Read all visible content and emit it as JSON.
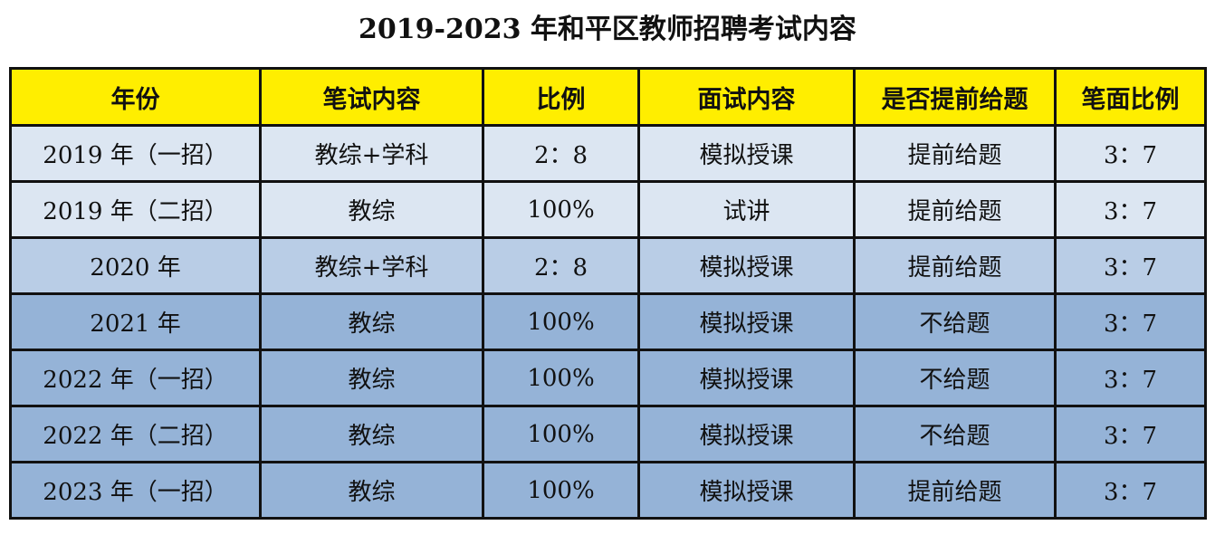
{
  "title": "2019-2023 年和平区教师招聘考试内容",
  "colors": {
    "header_bg": "#ffee00",
    "row_light": "#dce6f2",
    "row_mid": "#b9cde6",
    "row_dark": "#95b3d7",
    "border": "#111111"
  },
  "table": {
    "headers": [
      "年份",
      "笔试内容",
      "比例",
      "面试内容",
      "是否提前给题",
      "笔面比例"
    ],
    "rows": [
      [
        "2019 年（一招）",
        "教综+学科",
        "2：8",
        "模拟授课",
        "提前给题",
        "3：7"
      ],
      [
        "2019 年（二招）",
        "教综",
        "100%",
        "试讲",
        "提前给题",
        "3：7"
      ],
      [
        "2020 年",
        "教综+学科",
        "2：8",
        "模拟授课",
        "提前给题",
        "3：7"
      ],
      [
        "2021 年",
        "教综",
        "100%",
        "模拟授课",
        "不给题",
        "3：7"
      ],
      [
        "2022 年（一招）",
        "教综",
        "100%",
        "模拟授课",
        "不给题",
        "3：7"
      ],
      [
        "2022 年（二招）",
        "教综",
        "100%",
        "模拟授课",
        "不给题",
        "3：7"
      ],
      [
        "2023 年（一招）",
        "教综",
        "100%",
        "模拟授课",
        "提前给题",
        "3：7"
      ]
    ]
  }
}
